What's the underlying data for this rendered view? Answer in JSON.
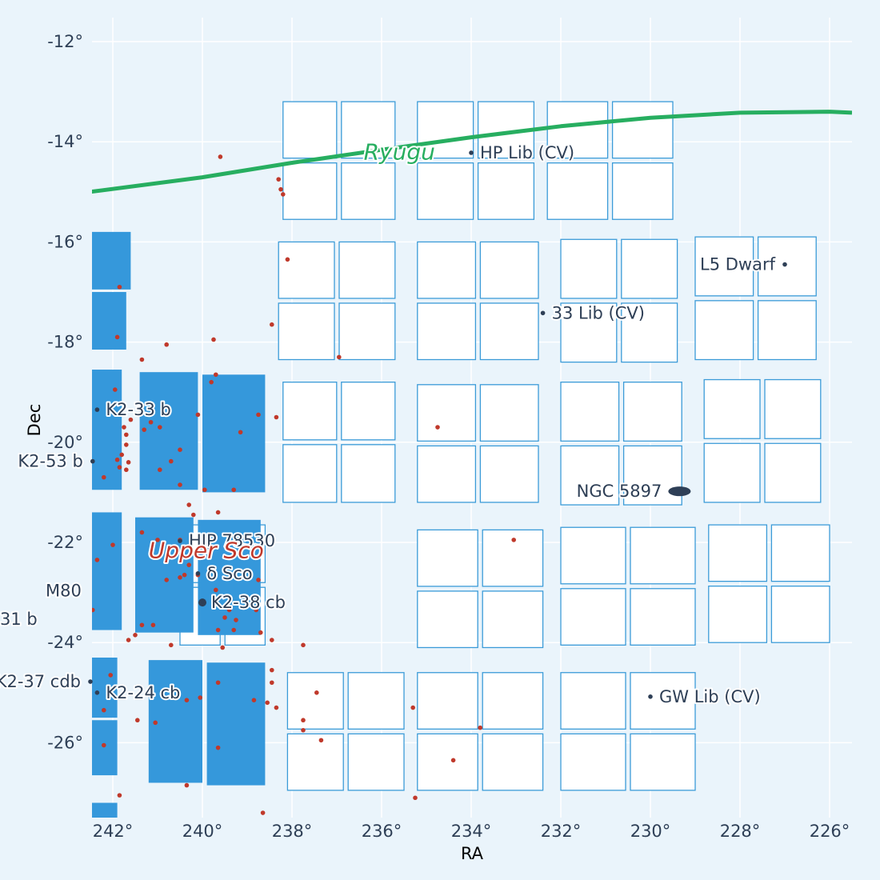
{
  "chart_data": {
    "type": "scatter",
    "xlabel": "RA",
    "ylabel": "Dec",
    "xlim": [
      242.5,
      225.5
    ],
    "ylim": [
      -27.4,
      -11.6
    ],
    "x_reversed": true,
    "grid": true,
    "xticks": [
      242,
      240,
      238,
      236,
      234,
      232,
      230,
      228,
      226
    ],
    "xtick_labels": [
      "242°",
      "240°",
      "238°",
      "236°",
      "234°",
      "232°",
      "230°",
      "228°",
      "226°"
    ],
    "yticks": [
      -12,
      -14,
      -16,
      -18,
      -20,
      -22,
      -24,
      -26
    ],
    "ytick_labels": [
      "-12°",
      "-14°",
      "-16°",
      "-18°",
      "-20°",
      "-22°",
      "-24°",
      "-26°"
    ],
    "colors": {
      "background": "#eaf4fb",
      "grid": "#ffffff",
      "outline_fields": "#3b9bd8",
      "filled_fields": "#3598db",
      "trail": "#27ae60",
      "points": "#c0392b",
      "labels": "#2e3f56",
      "region_label": "#c0392b",
      "asteroid_label": "#27ae60"
    },
    "asteroid": {
      "name": "Ryugu",
      "ra": [
        242.5,
        240.0,
        238.0,
        236.0,
        234.0,
        232.0,
        230.0,
        228.0,
        226.0,
        225.5
      ],
      "dec": [
        -15.0,
        -14.71,
        -14.42,
        -14.16,
        -13.91,
        -13.69,
        -13.52,
        -13.42,
        -13.4,
        -13.42
      ],
      "label_pos": [
        236.4,
        -14.2
      ]
    },
    "region": {
      "name": "Upper Sco",
      "pos": [
        241.2,
        -22.15
      ]
    },
    "targets": [
      {
        "name": "HP Lib (CV)",
        "ra": 234.0,
        "dec": -14.22,
        "side": "right",
        "big": false
      },
      {
        "name": "33 Lib (CV)",
        "ra": 232.4,
        "dec": -17.42,
        "side": "right",
        "big": false
      },
      {
        "name": "L5 Dwarf",
        "ra": 227.0,
        "dec": -16.45,
        "side": "left",
        "big": false
      },
      {
        "name": "K2-33 b",
        "ra": 242.35,
        "dec": -19.35,
        "side": "right",
        "big": false
      },
      {
        "name": "K2-53 b",
        "ra": 242.45,
        "dec": -20.38,
        "side": "left",
        "big": false
      },
      {
        "name": "HIP 78530",
        "ra": 240.5,
        "dec": -21.97,
        "side": "right",
        "big": false
      },
      {
        "name": "δ Sco",
        "ra": 240.1,
        "dec": -22.62,
        "side": "right",
        "big": false
      },
      {
        "name": "K2-38 cb",
        "ra": 240.0,
        "dec": -23.2,
        "side": "right",
        "big": true
      },
      {
        "name": "GW Lib (CV)",
        "ra": 230.0,
        "dec": -25.08,
        "side": "right",
        "big": false
      },
      {
        "name": "K2-37 cdb",
        "ra": 242.5,
        "dec": -24.78,
        "side": "left",
        "big": false
      },
      {
        "name": "K2-24 cb",
        "ra": 242.35,
        "dec": -25.0,
        "side": "right",
        "big": false
      }
    ],
    "plain_labels": [
      {
        "name": "M80",
        "ra": 243.1,
        "dec": -22.97
      },
      {
        "name": "31 b",
        "ra": 244.1,
        "dec": -23.53
      }
    ],
    "galaxy": {
      "name": "NGC 5897",
      "ra": 229.35,
      "dec": -20.98
    },
    "filled_fields": [
      {
        "ra0": 243.0,
        "ra1": 241.6,
        "dec0": -15.8,
        "dec1": -16.95
      },
      {
        "ra0": 243.0,
        "ra1": 241.7,
        "dec0": -17.0,
        "dec1": -18.15
      },
      {
        "ra0": 243.0,
        "ra1": 241.8,
        "dec0": -18.55,
        "dec1": -20.95
      },
      {
        "ra0": 241.4,
        "ra1": 240.1,
        "dec0": -18.6,
        "dec1": -20.95
      },
      {
        "ra0": 240.0,
        "ra1": 238.6,
        "dec0": -18.65,
        "dec1": -21.0
      },
      {
        "ra0": 243.0,
        "ra1": 241.8,
        "dec0": -21.4,
        "dec1": -23.75
      },
      {
        "ra0": 241.5,
        "ra1": 240.2,
        "dec0": -21.5,
        "dec1": -23.8
      },
      {
        "ra0": 240.1,
        "ra1": 238.7,
        "dec0": -21.55,
        "dec1": -23.85
      },
      {
        "ra0": 243.0,
        "ra1": 241.9,
        "dec0": -24.3,
        "dec1": -25.5
      },
      {
        "ra0": 243.0,
        "ra1": 241.9,
        "dec0": -25.55,
        "dec1": -26.65
      },
      {
        "ra0": 241.2,
        "ra1": 240.0,
        "dec0": -24.35,
        "dec1": -26.8
      },
      {
        "ra0": 239.9,
        "ra1": 238.6,
        "dec0": -24.4,
        "dec1": -26.85
      },
      {
        "ra0": 242.5,
        "ra1": 241.9,
        "dec0": -27.2,
        "dec1": -27.5
      }
    ],
    "outline_fields": [
      {
        "ra0": 238.2,
        "ra1": 235.7,
        "dec0": -13.2,
        "dec1": -15.55
      },
      {
        "ra0": 235.2,
        "ra1": 232.6,
        "dec0": -13.2,
        "dec1": -15.55
      },
      {
        "ra0": 232.3,
        "ra1": 229.5,
        "dec0": -13.2,
        "dec1": -15.55
      },
      {
        "ra0": 238.3,
        "ra1": 235.7,
        "dec0": -16.0,
        "dec1": -18.35
      },
      {
        "ra0": 235.2,
        "ra1": 232.5,
        "dec0": -16.0,
        "dec1": -18.35
      },
      {
        "ra0": 232.0,
        "ra1": 229.4,
        "dec0": -15.95,
        "dec1": -18.4
      },
      {
        "ra0": 229.0,
        "ra1": 226.3,
        "dec0": -15.9,
        "dec1": -18.35
      },
      {
        "ra0": 238.2,
        "ra1": 235.7,
        "dec0": -18.8,
        "dec1": -21.2
      },
      {
        "ra0": 235.2,
        "ra1": 232.5,
        "dec0": -18.85,
        "dec1": -21.2
      },
      {
        "ra0": 232.0,
        "ra1": 229.3,
        "dec0": -18.8,
        "dec1": -21.25
      },
      {
        "ra0": 228.8,
        "ra1": 226.2,
        "dec0": -18.75,
        "dec1": -21.2
      },
      {
        "ra0": 235.2,
        "ra1": 232.4,
        "dec0": -21.75,
        "dec1": -24.1
      },
      {
        "ra0": 232.0,
        "ra1": 229.0,
        "dec0": -21.7,
        "dec1": -24.05
      },
      {
        "ra0": 228.7,
        "ra1": 226.0,
        "dec0": -21.65,
        "dec1": -24.0
      },
      {
        "ra0": 240.5,
        "ra1": 238.6,
        "dec0": -21.65,
        "dec1": -24.05
      },
      {
        "ra0": 238.1,
        "ra1": 235.5,
        "dec0": -24.6,
        "dec1": -26.95
      },
      {
        "ra0": 235.2,
        "ra1": 232.4,
        "dec0": -24.6,
        "dec1": -26.95
      },
      {
        "ra0": 232.0,
        "ra1": 229.0,
        "dec0": -24.6,
        "dec1": -26.95
      }
    ],
    "points": [
      [
        239.6,
        -14.3
      ],
      [
        238.3,
        -14.75
      ],
      [
        238.25,
        -14.95
      ],
      [
        238.2,
        -15.05
      ],
      [
        238.1,
        -16.35
      ],
      [
        238.45,
        -17.65
      ],
      [
        236.95,
        -18.3
      ],
      [
        241.85,
        -16.9
      ],
      [
        241.9,
        -17.9
      ],
      [
        241.35,
        -18.35
      ],
      [
        240.8,
        -18.05
      ],
      [
        239.75,
        -17.95
      ],
      [
        239.7,
        -18.65
      ],
      [
        239.8,
        -18.8
      ],
      [
        241.95,
        -18.95
      ],
      [
        242.1,
        -19.3
      ],
      [
        241.6,
        -19.55
      ],
      [
        241.75,
        -19.7
      ],
      [
        241.7,
        -19.85
      ],
      [
        241.7,
        -20.05
      ],
      [
        241.8,
        -20.25
      ],
      [
        241.9,
        -20.35
      ],
      [
        241.85,
        -20.5
      ],
      [
        241.7,
        -20.55
      ],
      [
        241.65,
        -20.4
      ],
      [
        242.2,
        -20.7
      ],
      [
        241.3,
        -19.75
      ],
      [
        241.15,
        -19.6
      ],
      [
        240.95,
        -19.7
      ],
      [
        240.5,
        -20.15
      ],
      [
        240.7,
        -20.38
      ],
      [
        240.95,
        -20.55
      ],
      [
        240.5,
        -20.85
      ],
      [
        240.1,
        -19.45
      ],
      [
        239.15,
        -19.8
      ],
      [
        238.75,
        -19.45
      ],
      [
        238.35,
        -19.5
      ],
      [
        239.3,
        -20.95
      ],
      [
        239.95,
        -20.95
      ],
      [
        240.3,
        -21.25
      ],
      [
        240.2,
        -21.45
      ],
      [
        239.65,
        -21.4
      ],
      [
        241.35,
        -21.8
      ],
      [
        241.0,
        -21.95
      ],
      [
        240.5,
        -21.95
      ],
      [
        240.3,
        -22.45
      ],
      [
        240.1,
        -22.65
      ],
      [
        240.5,
        -22.7
      ],
      [
        240.8,
        -22.75
      ],
      [
        239.7,
        -22.95
      ],
      [
        240.4,
        -22.65
      ],
      [
        239.4,
        -23.35
      ],
      [
        239.25,
        -23.55
      ],
      [
        239.5,
        -23.5
      ],
      [
        239.3,
        -23.75
      ],
      [
        239.65,
        -23.75
      ],
      [
        238.7,
        -23.8
      ],
      [
        238.8,
        -23.35
      ],
      [
        238.45,
        -23.95
      ],
      [
        237.75,
        -24.05
      ],
      [
        239.55,
        -24.1
      ],
      [
        240.7,
        -24.05
      ],
      [
        241.5,
        -23.85
      ],
      [
        241.65,
        -23.95
      ],
      [
        241.35,
        -23.65
      ],
      [
        241.1,
        -23.65
      ],
      [
        242.45,
        -23.35
      ],
      [
        242.35,
        -22.35
      ],
      [
        242.55,
        -22.3
      ],
      [
        242.0,
        -22.05
      ],
      [
        238.75,
        -22.75
      ],
      [
        238.45,
        -24.55
      ],
      [
        239.65,
        -24.8
      ],
      [
        238.45,
        -24.8
      ],
      [
        237.45,
        -25.0
      ],
      [
        237.75,
        -25.55
      ],
      [
        237.75,
        -25.75
      ],
      [
        237.35,
        -25.95
      ],
      [
        238.85,
        -25.15
      ],
      [
        238.55,
        -25.2
      ],
      [
        238.35,
        -25.3
      ],
      [
        240.05,
        -25.1
      ],
      [
        240.35,
        -25.15
      ],
      [
        241.45,
        -25.55
      ],
      [
        241.05,
        -25.6
      ],
      [
        242.2,
        -25.35
      ],
      [
        242.2,
        -26.05
      ],
      [
        239.65,
        -26.1
      ],
      [
        241.85,
        -27.05
      ],
      [
        240.35,
        -26.85
      ],
      [
        235.3,
        -25.3
      ],
      [
        233.8,
        -25.7
      ],
      [
        234.4,
        -26.35
      ],
      [
        235.25,
        -27.1
      ],
      [
        238.65,
        -27.4
      ],
      [
        234.75,
        -19.7
      ],
      [
        233.05,
        -21.95
      ],
      [
        242.05,
        -24.65
      ]
    ]
  }
}
